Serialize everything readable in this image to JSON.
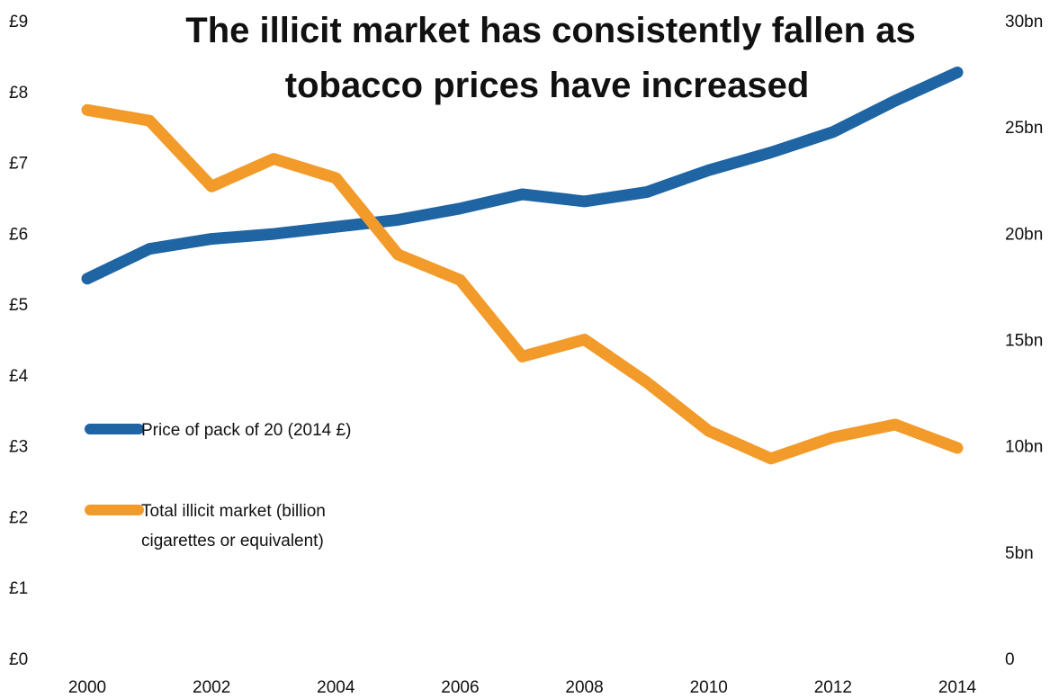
{
  "chart_data": {
    "type": "line",
    "title_lines": [
      "The illicit market has consistently fallen as",
      "tobacco prices have increased"
    ],
    "x": [
      2000,
      2001,
      2002,
      2003,
      2004,
      2005,
      2006,
      2007,
      2008,
      2009,
      2010,
      2011,
      2012,
      2013,
      2014
    ],
    "x_tick_labels": [
      "2000",
      "2002",
      "2004",
      "2006",
      "2008",
      "2010",
      "2012",
      "2014"
    ],
    "y_left": {
      "range": [
        0,
        9
      ],
      "tick_labels": [
        "£0",
        "£1",
        "£2",
        "£3",
        "£4",
        "£5",
        "£6",
        "£7",
        "£8",
        "£9"
      ]
    },
    "y_right": {
      "range": [
        0,
        30
      ],
      "tick_labels": [
        "0",
        "5bn",
        "10bn",
        "15bn",
        "20bn",
        "25bn",
        "30bn"
      ]
    },
    "grid": false,
    "legend_placement": "middle-left",
    "series": [
      {
        "name": "Price of pack of 20 (2014 £)",
        "axis": "left",
        "color": "#1f64a3",
        "values": [
          5.36,
          5.78,
          5.92,
          5.99,
          6.09,
          6.19,
          6.35,
          6.55,
          6.45,
          6.58,
          6.89,
          7.14,
          7.43,
          7.87,
          8.27
        ]
      },
      {
        "name": "Total illicit market (billion cigarettes or equivalent)",
        "name_lines": [
          "Total illicit market (billion",
          "cigarettes or equivalent)"
        ],
        "axis": "right",
        "color": "#f29b2a",
        "values": [
          25.8,
          25.3,
          22.2,
          23.5,
          22.6,
          19.0,
          17.8,
          14.2,
          15.0,
          13.0,
          10.7,
          9.4,
          10.4,
          11.0,
          9.9
        ]
      }
    ]
  }
}
